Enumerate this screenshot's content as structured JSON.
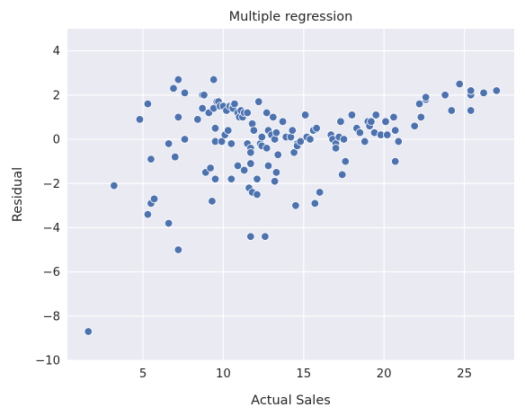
{
  "chart_data": {
    "type": "scatter",
    "title": "Multiple regression",
    "xlabel": "Actual Sales",
    "ylabel": "Residual",
    "xlim": [
      0.3,
      28.1
    ],
    "ylim": [
      -10,
      5
    ],
    "xticks": [
      5,
      10,
      15,
      20,
      25
    ],
    "yticks": [
      -10,
      -8,
      -6,
      -4,
      -2,
      0,
      2,
      4
    ],
    "ytick_labels": [
      "−10",
      "−8",
      "−6",
      "−4",
      "−2",
      "0",
      "2",
      "4"
    ],
    "grid": true,
    "legend": "none",
    "colors": {
      "background": "#eaeaf2",
      "point": "#4c72b0",
      "grid": "#ffffff"
    },
    "points": [
      [
        1.6,
        -8.7
      ],
      [
        3.2,
        -2.1
      ],
      [
        4.8,
        0.9
      ],
      [
        5.3,
        1.6
      ],
      [
        5.3,
        -3.4
      ],
      [
        5.5,
        -0.9
      ],
      [
        5.5,
        -2.9
      ],
      [
        5.7,
        -2.7
      ],
      [
        6.6,
        -0.2
      ],
      [
        6.6,
        -3.8
      ],
      [
        6.9,
        2.3
      ],
      [
        7.0,
        -0.8
      ],
      [
        7.2,
        1.0
      ],
      [
        7.2,
        -5.0
      ],
      [
        7.2,
        2.7
      ],
      [
        7.6,
        0.0
      ],
      [
        7.6,
        2.1
      ],
      [
        8.4,
        0.9
      ],
      [
        8.7,
        2.0
      ],
      [
        8.7,
        1.4
      ],
      [
        8.8,
        2.0
      ],
      [
        8.9,
        -1.5
      ],
      [
        9.1,
        1.2
      ],
      [
        9.2,
        -1.3
      ],
      [
        9.3,
        -2.8
      ],
      [
        9.4,
        2.7
      ],
      [
        9.4,
        1.4
      ],
      [
        9.5,
        0.5
      ],
      [
        9.5,
        -0.1
      ],
      [
        9.5,
        -1.8
      ],
      [
        9.6,
        1.7
      ],
      [
        9.7,
        1.7
      ],
      [
        9.8,
        1.5
      ],
      [
        9.9,
        -0.1
      ],
      [
        10.0,
        1.5
      ],
      [
        10.1,
        0.2
      ],
      [
        10.2,
        1.3
      ],
      [
        10.3,
        0.4
      ],
      [
        10.4,
        1.5
      ],
      [
        10.5,
        -0.2
      ],
      [
        10.5,
        -1.8
      ],
      [
        10.6,
        1.5
      ],
      [
        10.6,
        1.4
      ],
      [
        10.7,
        1.6
      ],
      [
        10.9,
        1.2
      ],
      [
        10.9,
        -1.2
      ],
      [
        11.0,
        1.0
      ],
      [
        11.1,
        1.3
      ],
      [
        11.2,
        1.0
      ],
      [
        11.3,
        1.2
      ],
      [
        11.3,
        -1.4
      ],
      [
        11.5,
        1.2
      ],
      [
        11.5,
        -0.2
      ],
      [
        11.6,
        -2.2
      ],
      [
        11.7,
        -4.4
      ],
      [
        11.7,
        -1.1
      ],
      [
        11.7,
        -0.4
      ],
      [
        11.7,
        -0.6
      ],
      [
        11.8,
        0.7
      ],
      [
        11.8,
        -2.4
      ],
      [
        11.9,
        0.4
      ],
      [
        12.1,
        -2.5
      ],
      [
        12.1,
        -1.8
      ],
      [
        12.2,
        1.7
      ],
      [
        12.3,
        -0.2
      ],
      [
        12.4,
        0.1
      ],
      [
        12.4,
        -0.3
      ],
      [
        12.6,
        -4.4
      ],
      [
        12.7,
        1.2
      ],
      [
        12.7,
        -0.4
      ],
      [
        12.8,
        0.4
      ],
      [
        12.8,
        -1.2
      ],
      [
        13.0,
        0.2
      ],
      [
        13.1,
        1.0
      ],
      [
        13.2,
        0.0
      ],
      [
        13.2,
        -1.9
      ],
      [
        13.3,
        -1.5
      ],
      [
        13.3,
        0.3
      ],
      [
        13.4,
        -0.7
      ],
      [
        13.7,
        0.8
      ],
      [
        13.9,
        0.1
      ],
      [
        14.2,
        0.1
      ],
      [
        14.3,
        0.4
      ],
      [
        14.4,
        -0.6
      ],
      [
        14.5,
        -3.0
      ],
      [
        14.6,
        -0.2
      ],
      [
        14.6,
        -0.3
      ],
      [
        14.8,
        -0.1
      ],
      [
        15.1,
        1.1
      ],
      [
        15.2,
        0.1
      ],
      [
        15.4,
        0.0
      ],
      [
        15.6,
        0.4
      ],
      [
        15.7,
        -2.9
      ],
      [
        15.8,
        0.5
      ],
      [
        16.0,
        -2.4
      ],
      [
        16.7,
        0.2
      ],
      [
        16.8,
        0.0
      ],
      [
        17.0,
        -0.2
      ],
      [
        17.0,
        -0.4
      ],
      [
        17.2,
        0.1
      ],
      [
        17.3,
        0.8
      ],
      [
        17.4,
        -1.6
      ],
      [
        17.5,
        0.0
      ],
      [
        17.6,
        -1.0
      ],
      [
        18.0,
        1.1
      ],
      [
        18.3,
        0.5
      ],
      [
        18.5,
        0.3
      ],
      [
        18.8,
        -0.1
      ],
      [
        19.0,
        0.8
      ],
      [
        19.1,
        0.6
      ],
      [
        19.2,
        0.8
      ],
      [
        19.4,
        0.3
      ],
      [
        19.5,
        1.1
      ],
      [
        19.8,
        0.2
      ],
      [
        20.1,
        0.8
      ],
      [
        20.2,
        0.2
      ],
      [
        20.6,
        1.0
      ],
      [
        20.7,
        0.4
      ],
      [
        20.7,
        -1.0
      ],
      [
        20.9,
        -0.1
      ],
      [
        21.9,
        0.6
      ],
      [
        22.2,
        1.6
      ],
      [
        22.3,
        1.0
      ],
      [
        22.6,
        1.8
      ],
      [
        22.6,
        1.9
      ],
      [
        23.8,
        2.0
      ],
      [
        24.2,
        1.3
      ],
      [
        24.7,
        2.5
      ],
      [
        25.4,
        2.0
      ],
      [
        25.4,
        2.2
      ],
      [
        25.4,
        1.3
      ],
      [
        26.2,
        2.1
      ],
      [
        27.0,
        2.2
      ]
    ]
  }
}
